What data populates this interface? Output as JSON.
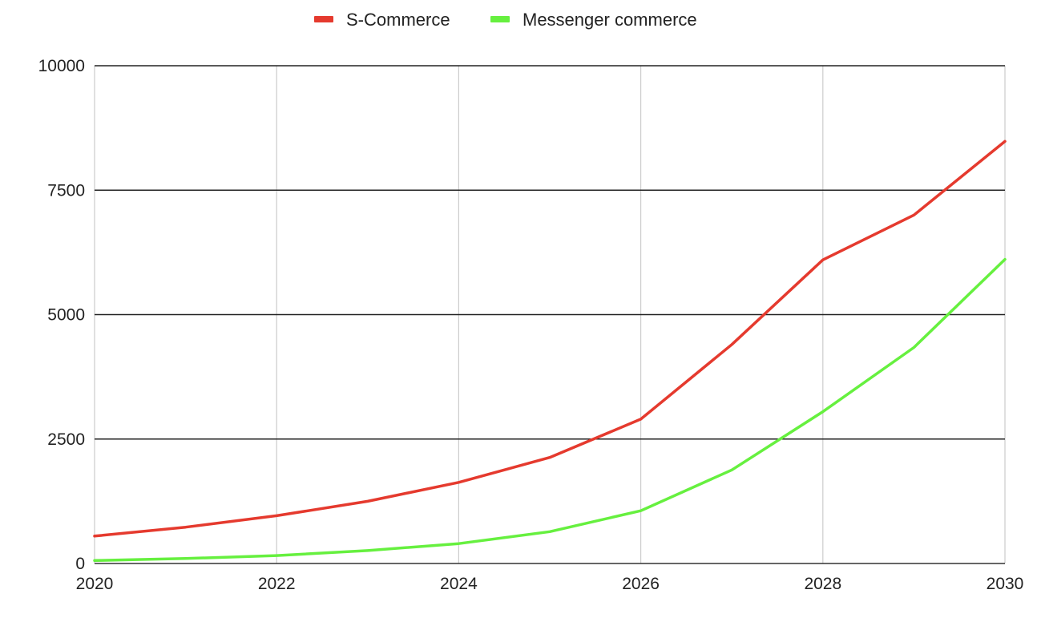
{
  "chart_data": {
    "type": "line",
    "title": "",
    "xlabel": "",
    "ylabel": "",
    "x": [
      2020,
      2021,
      2022,
      2023,
      2024,
      2025,
      2026,
      2027,
      2028,
      2029,
      2030
    ],
    "xlim": [
      2020,
      2030
    ],
    "ylim": [
      0,
      10000
    ],
    "x_ticks": [
      "2020",
      "2022",
      "2024",
      "2026",
      "2028",
      "2030"
    ],
    "x_tick_values": [
      2020,
      2022,
      2024,
      2026,
      2028,
      2030
    ],
    "y_ticks": [
      "0",
      "2500",
      "5000",
      "7500",
      "10000"
    ],
    "y_tick_values": [
      0,
      2500,
      5000,
      7500,
      10000
    ],
    "grid": true,
    "legend_position": "top-center",
    "series": [
      {
        "name": "S-Commerce",
        "color": "#e53a2e",
        "values": [
          550,
          730,
          960,
          1250,
          1630,
          2130,
          2900,
          4400,
          6100,
          7000,
          8480
        ]
      },
      {
        "name": "Messenger commerce",
        "color": "#66f03f",
        "values": [
          60,
          100,
          160,
          260,
          400,
          640,
          1060,
          1880,
          3050,
          4340,
          6110
        ]
      }
    ]
  }
}
